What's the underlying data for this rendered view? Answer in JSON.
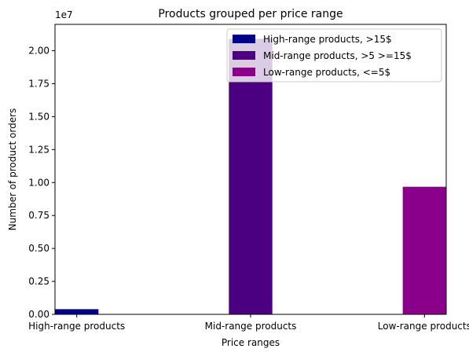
{
  "chart_data": {
    "type": "bar",
    "title": "Products grouped per price range",
    "xlabel": "Price ranges",
    "ylabel": "Number of product orders",
    "offset_text": "1e7",
    "categories": [
      "High-range products",
      "Mid-range products",
      "Low-range products"
    ],
    "series": [
      {
        "name": "High-range products, >15$",
        "color": "#00008b",
        "values": [
          392000,
          null,
          null
        ]
      },
      {
        "name": "Mid-range products, >5 >=15$",
        "color": "#4b0082",
        "values": [
          null,
          20900000,
          null
        ]
      },
      {
        "name": "Low-range products, <=5$",
        "color": "#8b008b",
        "values": [
          null,
          null,
          9680000
        ]
      }
    ],
    "ylim": [
      0,
      22000000
    ],
    "yticks": [
      0,
      2500000,
      5000000,
      7500000,
      10000000,
      12500000,
      15000000,
      17500000,
      20000000
    ],
    "ytick_labels": [
      "0.00",
      "0.25",
      "0.50",
      "0.75",
      "1.00",
      "1.25",
      "1.50",
      "1.75",
      "2.00"
    ],
    "grid": false,
    "legend_position": "top-right"
  }
}
